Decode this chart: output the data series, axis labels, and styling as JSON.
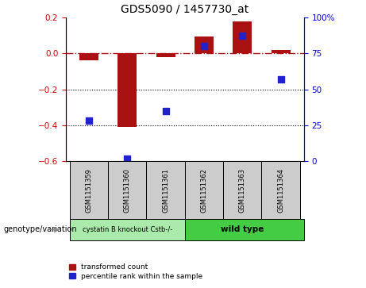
{
  "title": "GDS5090 / 1457730_at",
  "samples": [
    "GSM1151359",
    "GSM1151360",
    "GSM1151361",
    "GSM1151362",
    "GSM1151363",
    "GSM1151364"
  ],
  "red_bars": [
    -0.04,
    -0.41,
    -0.02,
    0.095,
    0.175,
    0.02
  ],
  "blue_percentiles": [
    28,
    2,
    35,
    80,
    87,
    57
  ],
  "blue_dot_size": 35,
  "red_color": "#aa1111",
  "blue_color": "#2222cc",
  "bar_width": 0.5,
  "ylim_left": [
    -0.6,
    0.2
  ],
  "ylim_right": [
    0,
    100
  ],
  "yticks_left": [
    -0.6,
    -0.4,
    -0.2,
    0.0,
    0.2
  ],
  "yticks_right": [
    0,
    25,
    50,
    75,
    100
  ],
  "ytick_labels_right": [
    "0",
    "25",
    "50",
    "75",
    "100%"
  ],
  "hline_y": 0.0,
  "dotted_lines": [
    -0.2,
    -0.4
  ],
  "group1_label": "cystatin B knockout Cstb-/-",
  "group2_label": "wild type",
  "group1_color": "#aaeaaa",
  "group2_color": "#44cc44",
  "genotype_label": "genotype/variation",
  "legend_red": "transformed count",
  "legend_blue": "percentile rank within the sample",
  "left_tick_color": "#cc0000",
  "right_tick_color": "#0000cc",
  "sample_box_color": "#cccccc",
  "background_color": "#ffffff"
}
